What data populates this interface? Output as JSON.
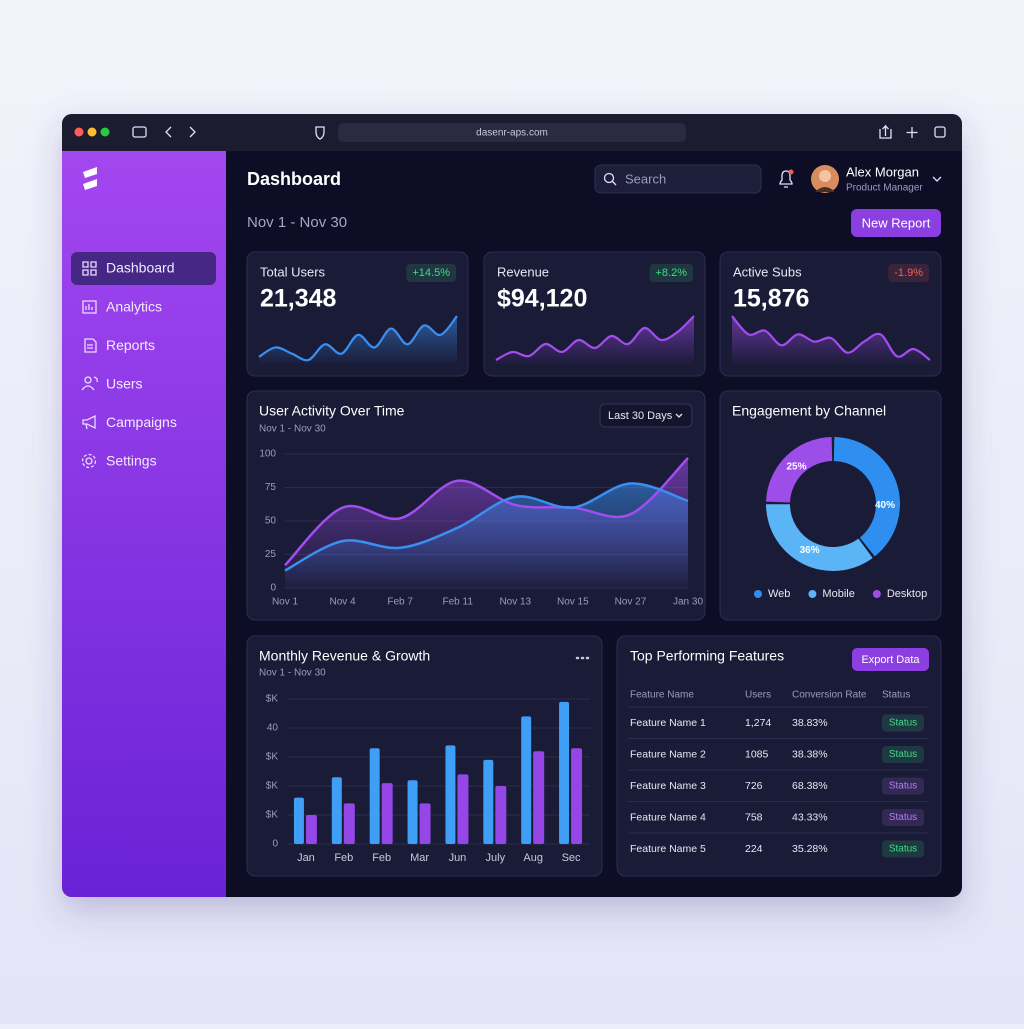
{
  "browser": {
    "url": "dasenr-aps.com"
  },
  "sidebar": {
    "nav": [
      "Dashboard",
      "Analytics",
      "Reports",
      "Users",
      "Campaigns",
      "Settings"
    ],
    "active": 0
  },
  "header": {
    "title": "Dashboard",
    "date_range": "Nov 1 - Nov 30",
    "search_placeholder": "Search",
    "user": {
      "name": "Alex Morgan",
      "role": "Product Manager"
    },
    "button": "New Report"
  },
  "kpis": [
    {
      "label": "Total Users",
      "value": "21,348",
      "change": "+14.5%",
      "change_color": "#3ddc84",
      "color": "#3b8ff0",
      "trend": [
        5,
        8,
        6,
        4,
        9,
        6,
        12,
        8,
        14,
        9,
        15,
        12,
        18
      ]
    },
    {
      "label": "Revenue",
      "value": "$94,120",
      "change": "+8.2%",
      "change_color": "#3ddc84",
      "color": "#a24df0",
      "trend": [
        4,
        6,
        5,
        8,
        6,
        9,
        7,
        10,
        8,
        12,
        9,
        11,
        15
      ]
    },
    {
      "label": "Active Subs",
      "value": "15,876",
      "change": "-1.9%",
      "change_color": "#f0605a",
      "color": "#a24df0",
      "trend": [
        16,
        11,
        12,
        8,
        11,
        9,
        10,
        6,
        9,
        11,
        5,
        7,
        4
      ]
    }
  ],
  "chart_data": [
    {
      "type": "line",
      "title": "User Activity Over Time",
      "subtitle": "Nov 1 - Nov 30",
      "control": "Last 30 Days",
      "categories": [
        "Nov 1",
        "Nov 4",
        "Feb 7",
        "Feb 11",
        "Nov 13",
        "Nov 15",
        "Nov 27",
        "Jan 30"
      ],
      "series": [
        {
          "color": "#a24df0",
          "values": [
            17,
            60,
            52,
            80,
            62,
            60,
            55,
            97
          ]
        },
        {
          "color": "#3a8ff0",
          "values": [
            13,
            35,
            30,
            45,
            68,
            60,
            78,
            65
          ]
        }
      ],
      "ylim": [
        0,
        100
      ],
      "yticks": [
        0,
        25,
        50,
        75,
        100
      ],
      "grid": true,
      "area": true
    },
    {
      "type": "pie",
      "title": "Engagement by Channel",
      "categories": [
        "Web",
        "Mobile",
        "Desktop"
      ],
      "values": [
        40,
        36,
        25
      ],
      "value_labels": [
        "40%",
        "36%",
        "25%"
      ],
      "colors": [
        "#2f8ff0",
        "#5ab4f5",
        "#9d4ee8"
      ],
      "legend": "bottom"
    },
    {
      "type": "bar",
      "title": "Monthly Revenue & Growth",
      "subtitle": "Nov 1 - Nov 30",
      "categories": [
        "Jan",
        "Feb",
        "Feb",
        "Mar",
        "Jun",
        "July",
        "Aug",
        "Sec"
      ],
      "series": [
        {
          "color": "#3f9ef5",
          "values": [
            16,
            23,
            33,
            22,
            34,
            29,
            44,
            49
          ]
        },
        {
          "color": "#9447e6",
          "values": [
            10,
            14,
            21,
            14,
            24,
            20,
            32,
            33
          ]
        }
      ],
      "ylim": [
        0,
        50
      ],
      "yticks": [
        0,
        {
          "value": 10,
          "label": "$K"
        },
        {
          "value": 20,
          "label": "$K"
        },
        {
          "value": 30,
          "label": "$K"
        },
        40,
        {
          "value": 50,
          "label": "$K"
        }
      ],
      "grid": true
    }
  ],
  "table": {
    "title": "Top Performing Features",
    "button": "Export Data",
    "columns": [
      "Feature Name",
      "Users",
      "Conversion Rate",
      "Status"
    ],
    "rows": [
      [
        "Feature Name 1",
        "1,274",
        "38.83%",
        "Status"
      ],
      [
        "Feature Name 2",
        "1085",
        "38.38%",
        "Status"
      ],
      [
        "Feature Name 3",
        "726",
        "68.38%",
        "Status"
      ],
      [
        "Feature Name 4",
        "758",
        "43.33%",
        "Status"
      ],
      [
        "Feature Name 5",
        "224",
        "35.28%",
        "Status"
      ]
    ],
    "status_colors": [
      "#3ddc84",
      "#3ddc84",
      "#b57af5",
      "#b57af5",
      "#3ddc84"
    ]
  }
}
